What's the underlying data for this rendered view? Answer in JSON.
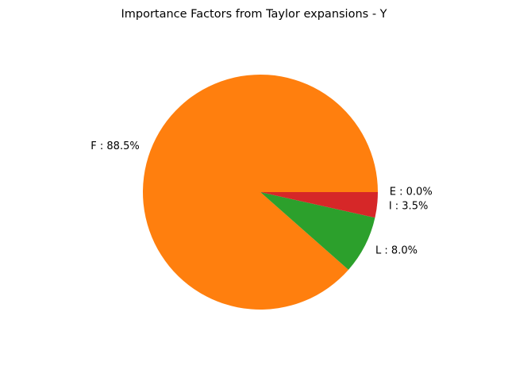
{
  "chart_data": {
    "type": "pie",
    "title": "Importance Factors from Taylor expansions - Y",
    "slices": [
      {
        "label": "E : 0.0%",
        "category": "E",
        "value": 0.0,
        "color": "#1f77b4"
      },
      {
        "label": "F : 88.5%",
        "category": "F",
        "value": 88.5,
        "color": "#ff7f0e"
      },
      {
        "label": "L : 8.0%",
        "category": "L",
        "value": 8.0,
        "color": "#2ca02c"
      },
      {
        "label": "I : 3.5%",
        "category": "I",
        "value": 3.5,
        "color": "#d62728"
      }
    ],
    "start_angle_deg": 0,
    "direction": "counterclockwise",
    "legend": "none"
  }
}
